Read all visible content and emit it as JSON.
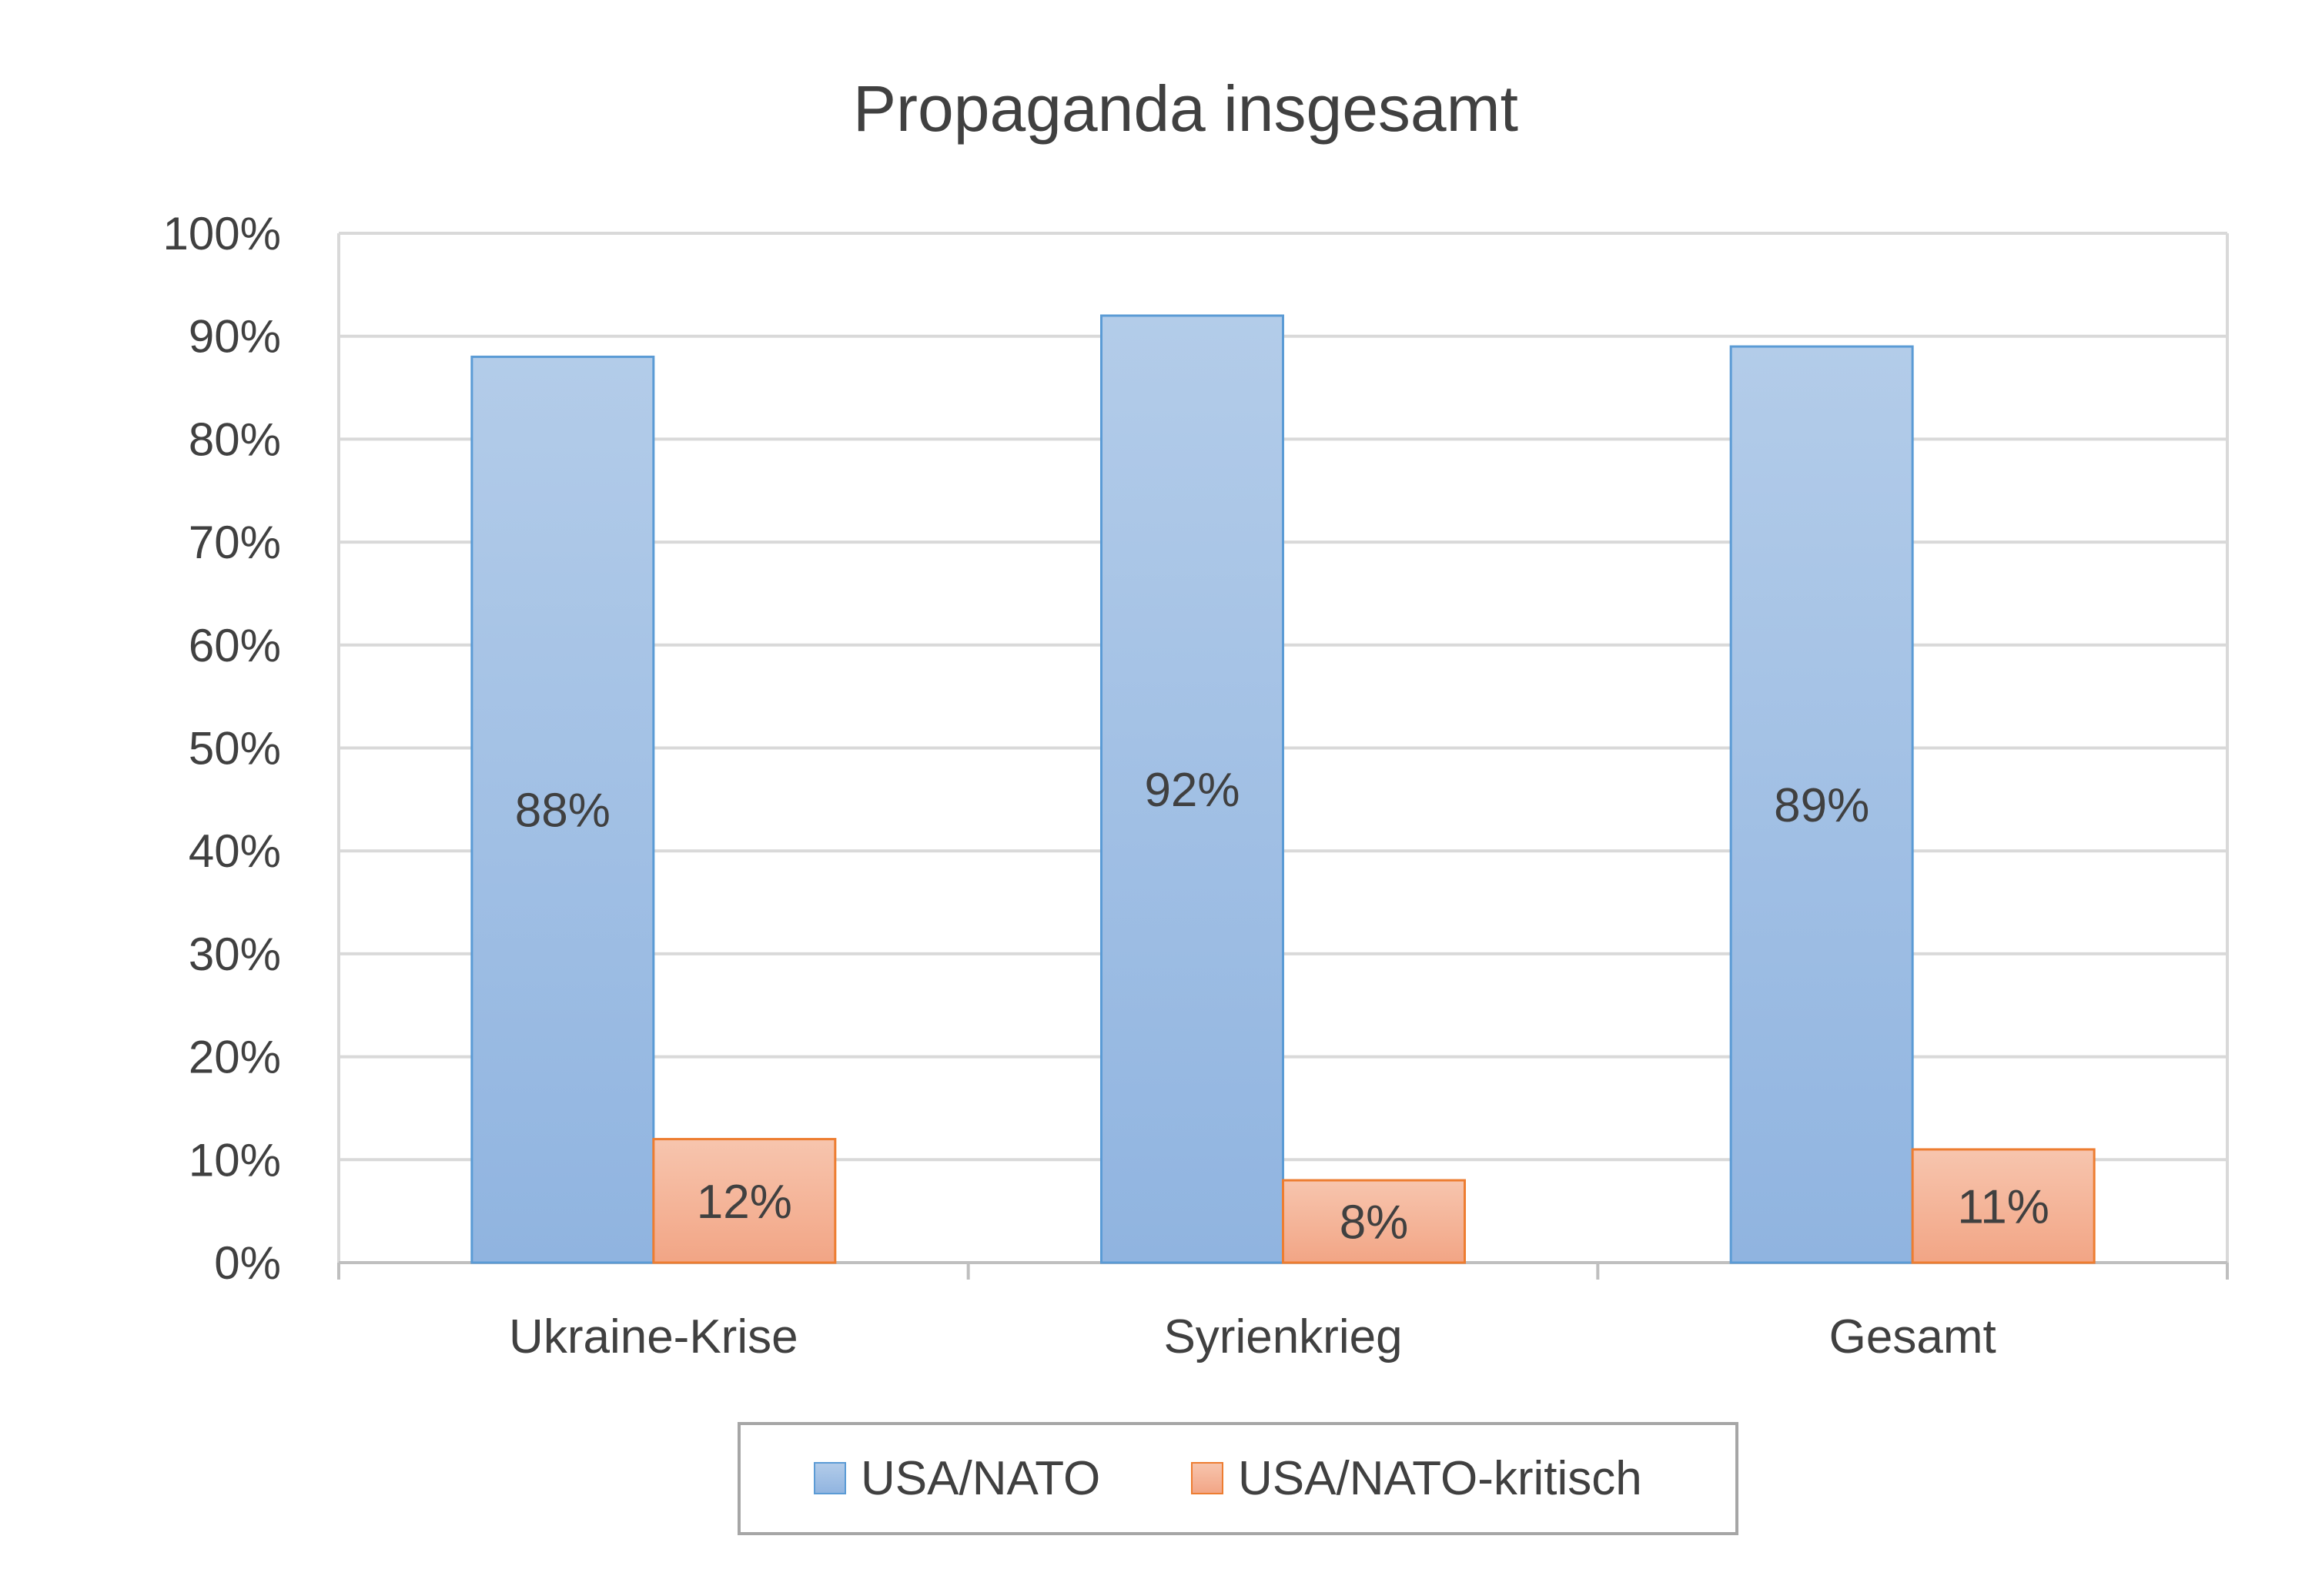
{
  "chart_data": {
    "type": "bar",
    "title": "Propaganda insgesamt",
    "categories": [
      "Ukraine-Krise",
      "Syrienkrieg",
      "Gesamt"
    ],
    "series": [
      {
        "name": "USA/NATO",
        "values": [
          88,
          92,
          89
        ],
        "labels": [
          "88%",
          "92%",
          "89%"
        ],
        "color": "#9dbde3",
        "border": "#5b9bd5"
      },
      {
        "name": "USA/NATO-kritisch",
        "values": [
          12,
          8,
          11
        ],
        "labels": [
          "12%",
          "8%",
          "11%"
        ],
        "color": "#f4b49a",
        "border": "#ed7d31"
      }
    ],
    "yticks": [
      "0%",
      "10%",
      "20%",
      "30%",
      "40%",
      "50%",
      "60%",
      "70%",
      "80%",
      "90%",
      "100%"
    ],
    "ylim": [
      0,
      100
    ],
    "grid": true,
    "legend_position": "bottom"
  }
}
